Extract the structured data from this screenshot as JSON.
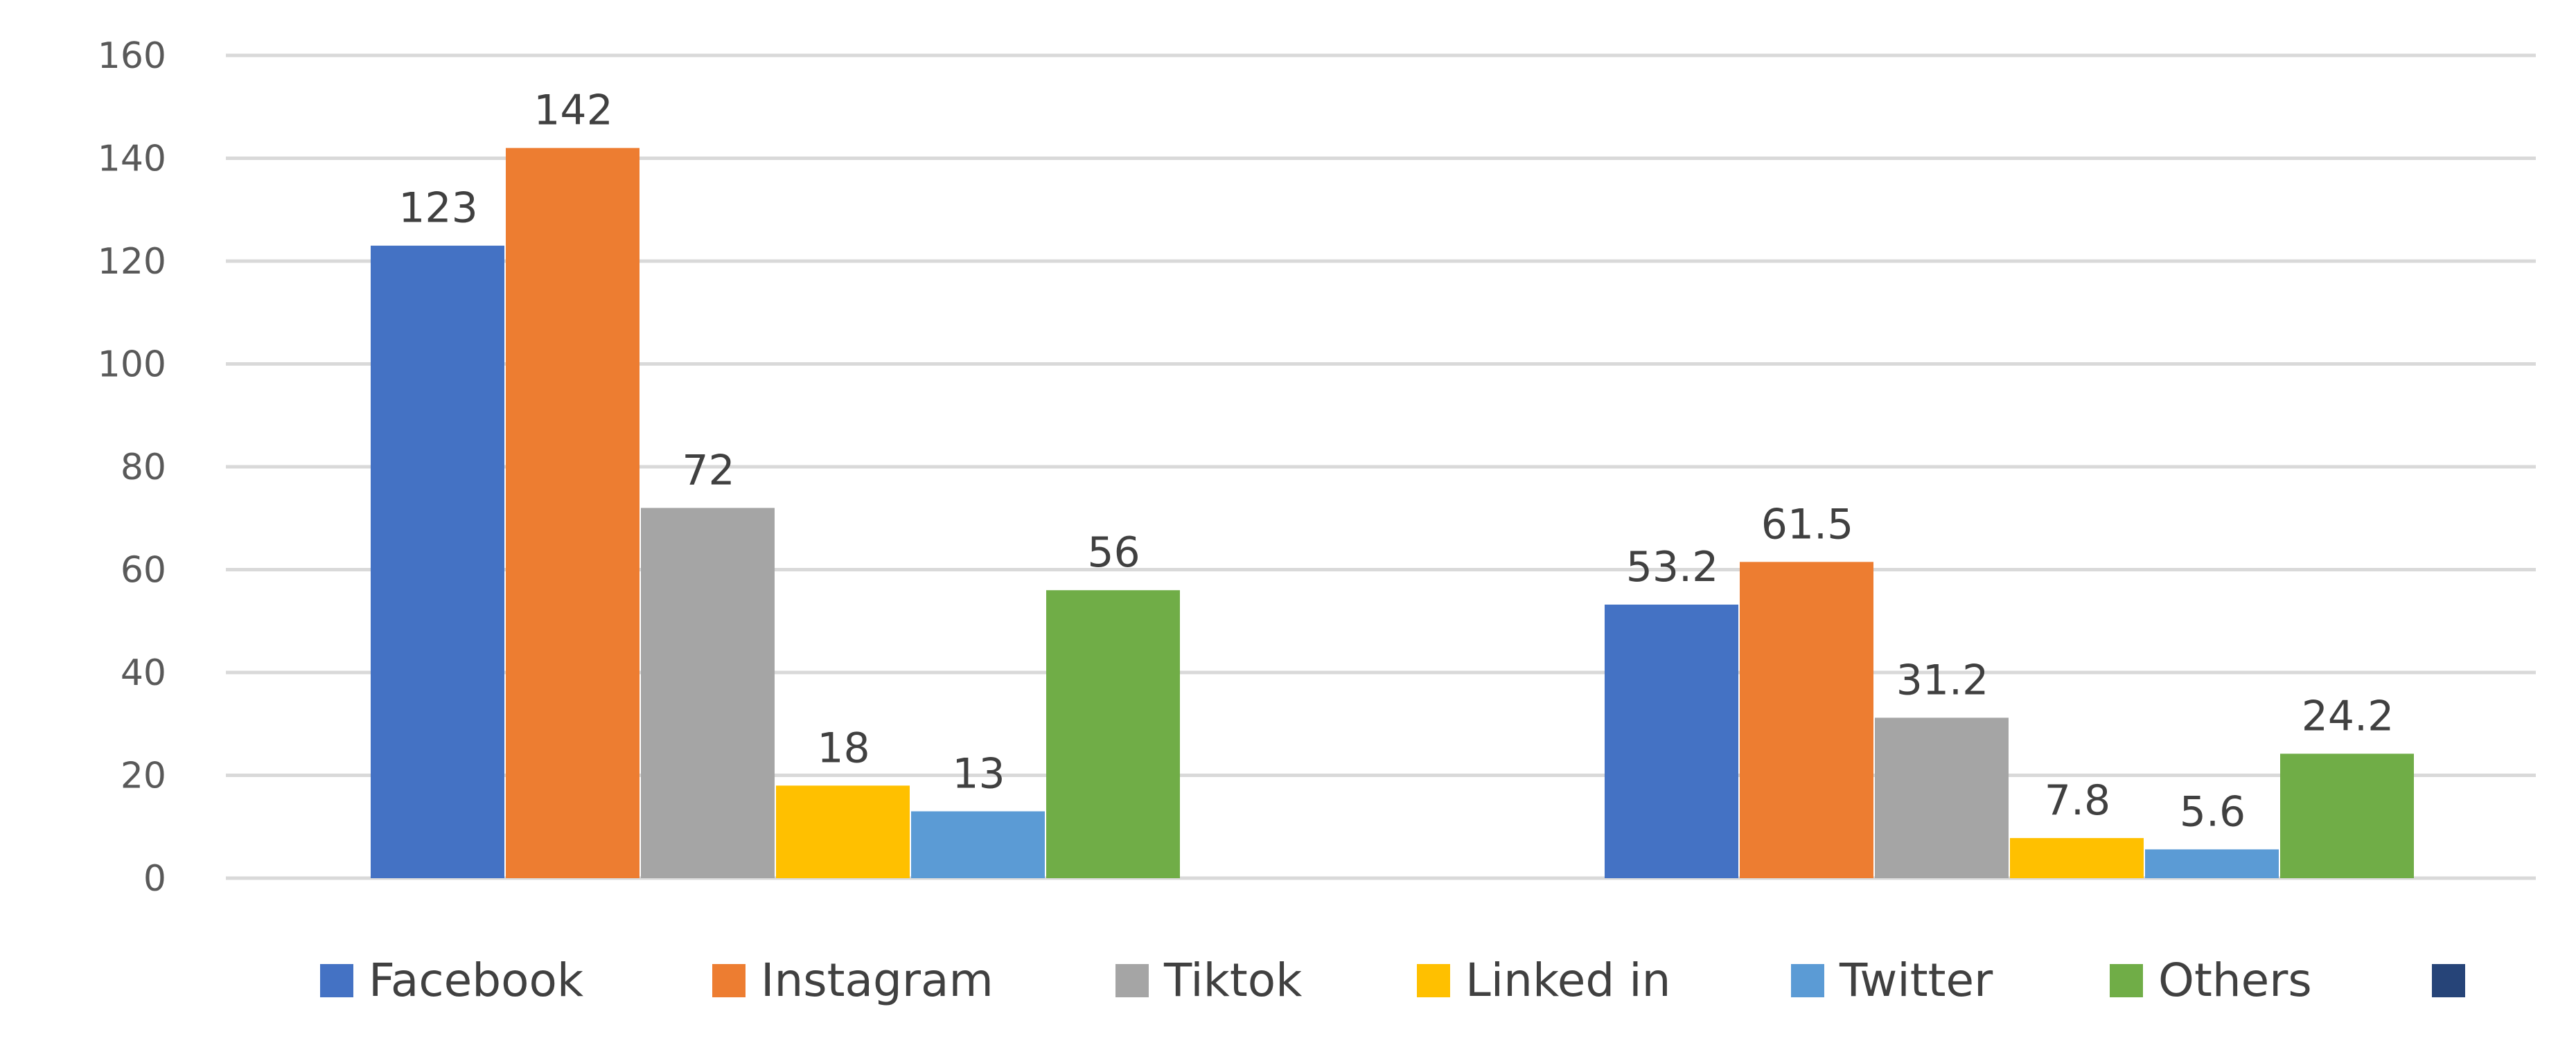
{
  "chart_data": {
    "type": "bar",
    "title": "",
    "xlabel": "",
    "ylabel": "",
    "ylim": [
      0,
      160
    ],
    "yticks": [
      0,
      20,
      40,
      60,
      80,
      100,
      120,
      140,
      160
    ],
    "grid": true,
    "legend_position": "bottom",
    "groups": 2,
    "series": [
      {
        "name": "Facebook",
        "color": "#4472C4",
        "values": [
          123,
          53.2
        ],
        "labels": [
          "123",
          "53.2"
        ]
      },
      {
        "name": "Instagram",
        "color": "#ED7D31",
        "values": [
          142,
          61.5
        ],
        "labels": [
          "142",
          "61.5"
        ]
      },
      {
        "name": "Tiktok",
        "color": "#A5A5A5",
        "values": [
          72,
          31.2
        ],
        "labels": [
          "72",
          "31.2"
        ]
      },
      {
        "name": "Linked in",
        "color": "#FFC000",
        "values": [
          18,
          7.8
        ],
        "labels": [
          "18",
          "7.8"
        ]
      },
      {
        "name": "Twitter",
        "color": "#5B9BD5",
        "values": [
          13,
          5.6
        ],
        "labels": [
          "13",
          "5.6"
        ]
      },
      {
        "name": "Others",
        "color": "#70AD47",
        "values": [
          56,
          24.2
        ],
        "labels": [
          "56",
          "24.2"
        ]
      },
      {
        "name": "",
        "color": "#264478",
        "values": [],
        "labels": []
      }
    ]
  }
}
